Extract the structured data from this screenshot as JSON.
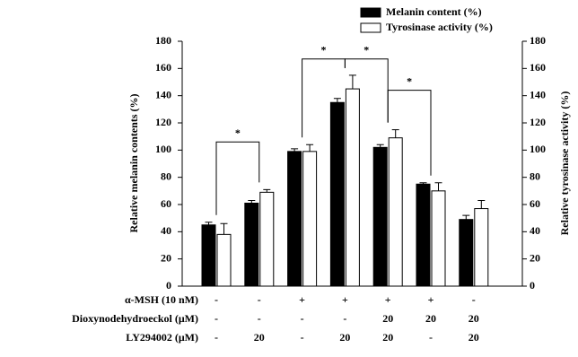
{
  "chart_data": {
    "type": "bar",
    "y_label": "Relative melanin contents (%)",
    "y2_label": "Relative tyrosinase activity (%)",
    "categories": [
      null,
      null,
      null,
      null,
      null,
      null,
      null
    ],
    "series": [
      {
        "name": "Melanin content (%)",
        "color": "#000000",
        "values": [
          45,
          61,
          99,
          135,
          102,
          75,
          49
        ],
        "errors": [
          2,
          2,
          2,
          3,
          2,
          1,
          3
        ]
      },
      {
        "name": "Tyrosinase activity (%)",
        "color": "#ffffff",
        "axis": "y2",
        "values": [
          38,
          69,
          99,
          145,
          109,
          70,
          57
        ],
        "errors": [
          8,
          2,
          5,
          10,
          6,
          6,
          6
        ]
      }
    ],
    "ylim": [
      0,
      180
    ],
    "yticks": [
      0,
      20,
      40,
      60,
      80,
      100,
      120,
      140,
      160,
      180
    ],
    "y2lim": [
      0,
      180
    ],
    "y2ticks": [
      0,
      20,
      40,
      60,
      80,
      100,
      120,
      140,
      160,
      180
    ],
    "legend": "top-right",
    "brackets": [
      {
        "from": 0,
        "to": 1,
        "y": 106,
        "label": "*"
      },
      {
        "from": 2,
        "to": 3,
        "y": 167,
        "label": "*"
      },
      {
        "from": 3,
        "to": 4,
        "y": 167,
        "label": "*"
      },
      {
        "from": 4,
        "to": 5,
        "y": 144,
        "label": "*"
      }
    ],
    "treatments": [
      {
        "label": "α-MSH (10 nM)",
        "cells": [
          "-",
          "-",
          "+",
          "+",
          "+",
          "+",
          "-"
        ]
      },
      {
        "label": "Dioxynodehydroeckol (μM)",
        "cells": [
          "-",
          "-",
          "-",
          "-",
          "20",
          "20",
          "20"
        ]
      },
      {
        "label": "LY294002 (μM)",
        "cells": [
          "-",
          "20",
          "-",
          "20",
          "20",
          "-",
          "20"
        ]
      }
    ]
  }
}
